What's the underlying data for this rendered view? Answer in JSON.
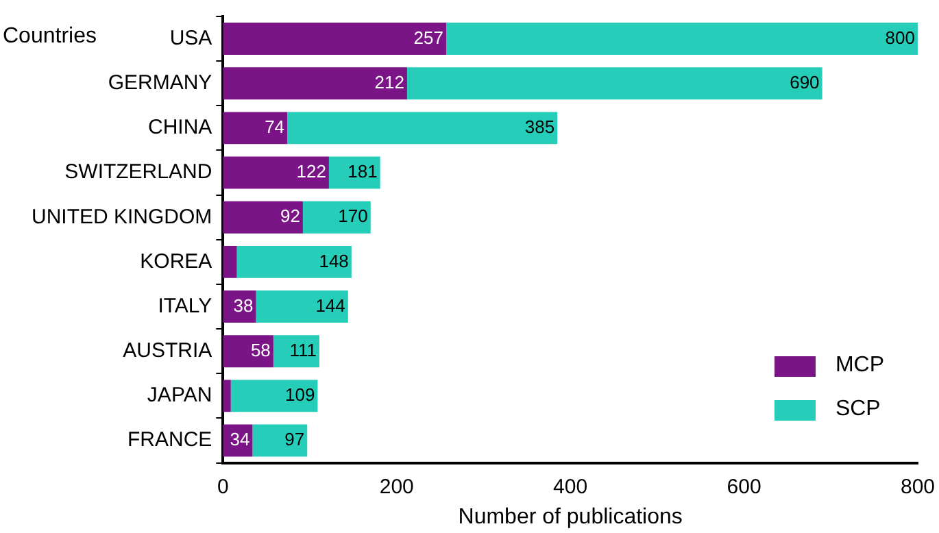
{
  "chart_data": {
    "type": "bar",
    "orientation": "horizontal",
    "stacked": true,
    "ylabel": "Countries",
    "xlabel": "Number of publications",
    "categories": [
      "USA",
      "GERMANY",
      "CHINA",
      "SWITZERLAND",
      "UNITED KINGDOM",
      "KOREA",
      "ITALY",
      "AUSTRIA",
      "JAPAN",
      "FRANCE"
    ],
    "series": [
      {
        "name": "MCP",
        "color": "#7a1487",
        "values": [
          257,
          212,
          74,
          122,
          92,
          16,
          38,
          58,
          9,
          34
        ],
        "value_labels": [
          "257",
          "212",
          "74",
          "122",
          "92",
          null,
          "38",
          "58",
          null,
          "34"
        ]
      },
      {
        "name": "SCP",
        "color": "#26cdb9",
        "values": [
          543,
          478,
          311,
          59,
          78,
          132,
          106,
          53,
          100,
          63
        ]
      }
    ],
    "totals": [
      "800",
      "690",
      "385",
      "181",
      "170",
      "148",
      "144",
      "111",
      "109",
      "97"
    ],
    "xlim": [
      0,
      800
    ],
    "xticks": [
      0,
      200,
      400,
      600,
      800
    ],
    "grid": false,
    "legend": "bottom right"
  }
}
